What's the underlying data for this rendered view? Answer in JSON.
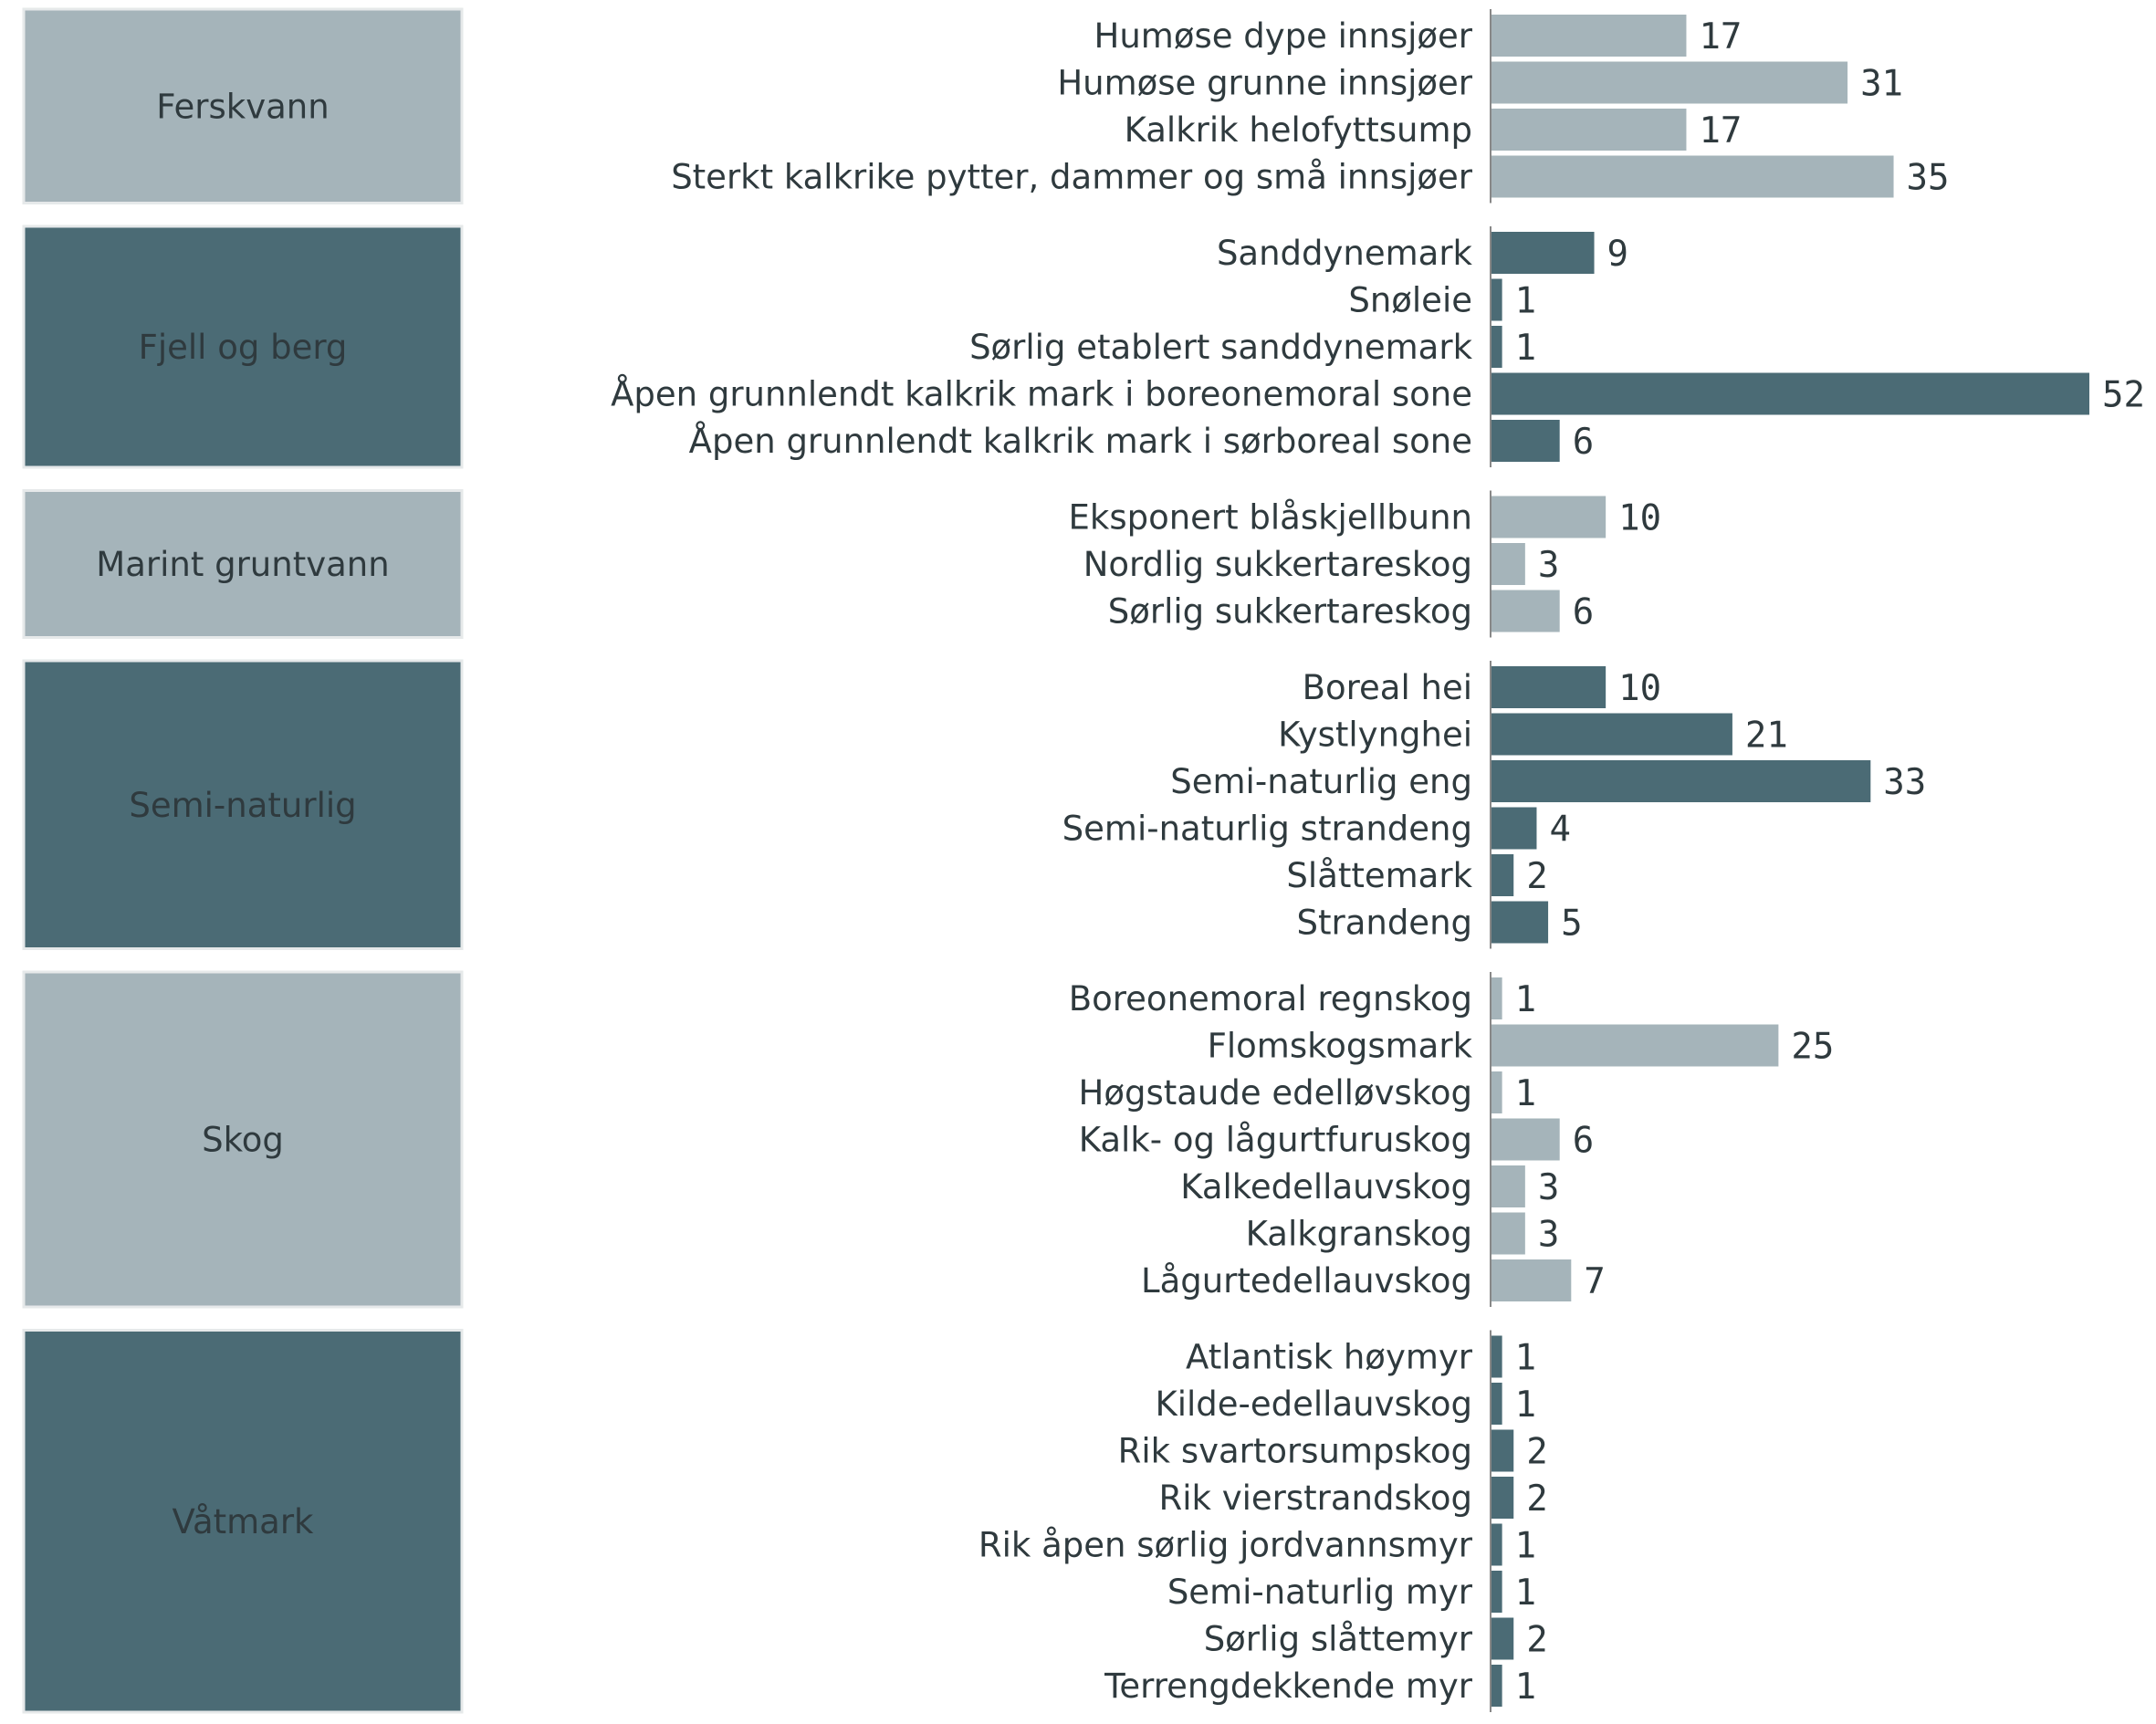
{
  "chart_data": {
    "type": "bar",
    "orientation": "horizontal",
    "colors": {
      "light": "#a5b4ba",
      "dark": "#4b6b75",
      "text": "#2f3a3e",
      "axis": "#888888"
    },
    "groups": [
      {
        "name": "Ferskvann",
        "color": "light",
        "items": [
          {
            "label": "Humøse dype innsjøer",
            "value": 17,
            "value_label": "17"
          },
          {
            "label": "Humøse grunne innsjøer",
            "value": 31,
            "value_label": "31"
          },
          {
            "label": "Kalkrik helofyttsump",
            "value": 17,
            "value_label": "17"
          },
          {
            "label": "Sterkt kalkrike pytter, dammer og små innsjøer",
            "value": 35,
            "value_label": "35"
          }
        ]
      },
      {
        "name": "Fjell og berg",
        "color": "dark",
        "items": [
          {
            "label": "Sanddynemark",
            "value": 9,
            "value_label": "9"
          },
          {
            "label": "Snøleie",
            "value": 1,
            "value_label": "1"
          },
          {
            "label": "Sørlig etablert sanddynemark",
            "value": 1,
            "value_label": "1"
          },
          {
            "label": "Åpen grunnlendt kalkrik mark i boreonemoral sone",
            "value": 52,
            "value_label": "52"
          },
          {
            "label": "Åpen grunnlendt kalkrik mark i sørboreal sone",
            "value": 6,
            "value_label": "6"
          }
        ]
      },
      {
        "name": "Marint gruntvann",
        "color": "light",
        "items": [
          {
            "label": "Eksponert blåskjellbunn",
            "value": 10,
            "value_label": "10"
          },
          {
            "label": "Nordlig sukkertareskog",
            "value": 3,
            "value_label": "3"
          },
          {
            "label": "Sørlig sukkertareskog",
            "value": 6,
            "value_label": "6"
          }
        ]
      },
      {
        "name": "Semi-naturlig",
        "color": "dark",
        "items": [
          {
            "label": "Boreal hei",
            "value": 10,
            "value_label": "10"
          },
          {
            "label": "Kystlynghei",
            "value": 21,
            "value_label": "21"
          },
          {
            "label": "Semi-naturlig eng",
            "value": 33,
            "value_label": "33"
          },
          {
            "label": "Semi-naturlig strandeng",
            "value": 4,
            "value_label": "4"
          },
          {
            "label": "Slåttemark",
            "value": 2,
            "value_label": "2"
          },
          {
            "label": "Strandeng",
            "value": 5,
            "value_label": "5"
          }
        ]
      },
      {
        "name": "Skog",
        "color": "light",
        "items": [
          {
            "label": "Boreonemoral regnskog",
            "value": 1,
            "value_label": "1"
          },
          {
            "label": "Flomskogsmark",
            "value": 25,
            "value_label": "25"
          },
          {
            "label": "Høgstaude edelløvskog",
            "value": 1,
            "value_label": "1"
          },
          {
            "label": "Kalk- og lågurtfuruskog",
            "value": 6,
            "value_label": "6"
          },
          {
            "label": "Kalkedellauvskog",
            "value": 3,
            "value_label": "3"
          },
          {
            "label": "Kalkgranskog",
            "value": 3,
            "value_label": "3"
          },
          {
            "label": "Lågurtedellauvskog",
            "value": 7,
            "value_label": "7"
          }
        ]
      },
      {
        "name": "Våtmark",
        "color": "dark",
        "items": [
          {
            "label": "Atlantisk høymyr",
            "value": 1,
            "value_label": "1"
          },
          {
            "label": "Kilde-edellauvskog",
            "value": 1,
            "value_label": "1"
          },
          {
            "label": "Rik svartorsumpskog",
            "value": 2,
            "value_label": "2"
          },
          {
            "label": "Rik vierstrandskog",
            "value": 2,
            "value_label": "2"
          },
          {
            "label": "Rik åpen sørlig jordvannsmyr",
            "value": 1,
            "value_label": "1"
          },
          {
            "label": "Semi-naturlig myr",
            "value": 1,
            "value_label": "1"
          },
          {
            "label": "Sørlig slåttemyr",
            "value": 2,
            "value_label": "2"
          },
          {
            "label": "Terrengdekkende myr",
            "value": 1,
            "value_label": "1"
          }
        ]
      }
    ],
    "xlim": [
      0,
      52
    ],
    "grid": false,
    "legend": "none",
    "title": "",
    "xlabel": "",
    "ylabel": ""
  }
}
